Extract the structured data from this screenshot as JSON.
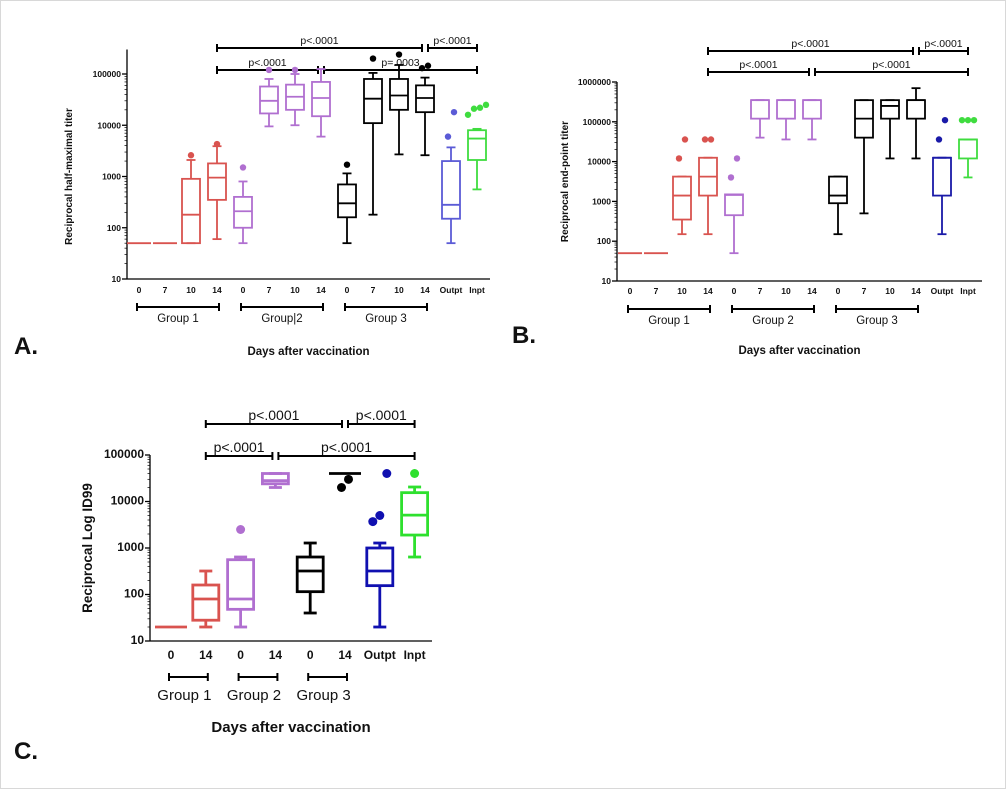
{
  "chart_data": [
    {
      "type": "box",
      "panel_label": "A.",
      "ylabel": "Reciprocal half-maximal titer",
      "xlabel": "Days after vaccination",
      "yscale": "log",
      "ylim": [
        10,
        300000
      ],
      "yticks": [
        "10",
        "100",
        "1000",
        "10000",
        "100000"
      ],
      "categories": [
        "0",
        "7",
        "10",
        "14",
        "0",
        "7",
        "10",
        "14",
        "0",
        "7",
        "10",
        "14",
        "Outpt",
        "Inpt"
      ],
      "groups": [
        {
          "label": "Group 1",
          "from": 0,
          "to": 3
        },
        {
          "label": "Group|2",
          "from": 4,
          "to": 7
        },
        {
          "label": "Group 3",
          "from": 8,
          "to": 11
        }
      ],
      "boxes": [
        {
          "color": "#d9534f",
          "min": 50,
          "q1": 50,
          "median": 50,
          "q3": 50,
          "max": 50,
          "outliers": []
        },
        {
          "color": "#d9534f",
          "min": 50,
          "q1": 50,
          "median": 50,
          "q3": 50,
          "max": 50,
          "outliers": []
        },
        {
          "color": "#d9534f",
          "min": 50,
          "q1": 50,
          "median": 180,
          "q3": 900,
          "max": 2100,
          "outliers": [
            2600
          ]
        },
        {
          "color": "#d9534f",
          "min": 60,
          "q1": 350,
          "median": 950,
          "q3": 1800,
          "max": 3900,
          "outliers": [
            4300
          ]
        },
        {
          "color": "#b06fd0",
          "min": 50,
          "q1": 100,
          "median": 210,
          "q3": 400,
          "max": 800,
          "outliers": [
            1500
          ]
        },
        {
          "color": "#b06fd0",
          "min": 9500,
          "q1": 17000,
          "median": 30000,
          "q3": 57000,
          "max": 80000,
          "outliers": [
            120000
          ]
        },
        {
          "color": "#b06fd0",
          "min": 10000,
          "q1": 20000,
          "median": 36000,
          "q3": 62000,
          "max": 100000,
          "outliers": [
            120000
          ]
        },
        {
          "color": "#b06fd0",
          "min": 6000,
          "q1": 15000,
          "median": 34000,
          "q3": 70000,
          "max": 125000,
          "outliers": []
        },
        {
          "color": "#000000",
          "min": 50,
          "q1": 160,
          "median": 300,
          "q3": 700,
          "max": 1150,
          "outliers": [
            1700
          ]
        },
        {
          "color": "#000000",
          "min": 180,
          "q1": 11000,
          "median": 33000,
          "q3": 80000,
          "max": 105000,
          "outliers": [
            200000
          ]
        },
        {
          "color": "#000000",
          "min": 2700,
          "q1": 20000,
          "median": 38000,
          "q3": 80000,
          "max": 150000,
          "outliers": [
            240000
          ]
        },
        {
          "color": "#000000",
          "min": 2600,
          "q1": 18000,
          "median": 34000,
          "q3": 60000,
          "max": 85000,
          "outliers": [
            130000,
            145000
          ]
        },
        {
          "color": "#5b5bd6",
          "min": 50,
          "q1": 150,
          "median": 280,
          "q3": 2000,
          "max": 3700,
          "outliers": [
            6000,
            18000
          ]
        },
        {
          "color": "#3fdc3f",
          "min": 560,
          "q1": 2100,
          "median": 5500,
          "q3": 8000,
          "max": 8500,
          "outliers": [
            16000,
            21000,
            22000,
            25000
          ]
        }
      ],
      "comparisons": [
        {
          "label": "p<.0001",
          "from": 3,
          "to": 11,
          "row": 0
        },
        {
          "label": "p<.0001",
          "from": 11,
          "to": 13,
          "row": 0
        },
        {
          "label": "p<.0001",
          "from": 3,
          "to": 7,
          "row": 1
        },
        {
          "label": "p=.0003",
          "from": 7,
          "to": 13,
          "row": 1
        }
      ]
    },
    {
      "type": "box",
      "panel_label": "B.",
      "ylabel": "Reciprocal end-point titer",
      "xlabel": "Days after vaccination",
      "yscale": "log",
      "ylim": [
        10,
        1000000
      ],
      "yticks": [
        "10",
        "100",
        "1000",
        "10000",
        "100000",
        "1000000"
      ],
      "categories": [
        "0",
        "7",
        "10",
        "14",
        "0",
        "7",
        "10",
        "14",
        "0",
        "7",
        "10",
        "14",
        "Outpt",
        "Inpt"
      ],
      "groups": [
        {
          "label": "Group 1",
          "from": 0,
          "to": 3
        },
        {
          "label": "Group 2",
          "from": 4,
          "to": 7
        },
        {
          "label": "Group 3",
          "from": 8,
          "to": 11
        }
      ],
      "boxes": [
        {
          "color": "#d9534f",
          "min": 50,
          "q1": 50,
          "median": 50,
          "q3": 50,
          "max": 50,
          "outliers": []
        },
        {
          "color": "#d9534f",
          "min": 50,
          "q1": 50,
          "median": 50,
          "q3": 50,
          "max": 50,
          "outliers": []
        },
        {
          "color": "#d9534f",
          "min": 150,
          "q1": 350,
          "median": 1400,
          "q3": 4200,
          "max": 4200,
          "outliers": [
            12000,
            36000
          ]
        },
        {
          "color": "#d9534f",
          "min": 150,
          "q1": 1400,
          "median": 4200,
          "q3": 12500,
          "max": 12500,
          "outliers": [
            36000,
            36000
          ]
        },
        {
          "color": "#b06fd0",
          "min": 50,
          "q1": 450,
          "median": 1450,
          "q3": 1500,
          "max": 1500,
          "outliers": [
            4000,
            12000
          ]
        },
        {
          "color": "#b06fd0",
          "min": 40000,
          "q1": 120000,
          "median": 350000,
          "q3": 350000,
          "max": 350000,
          "outliers": []
        },
        {
          "color": "#b06fd0",
          "min": 36000,
          "q1": 120000,
          "median": 350000,
          "q3": 350000,
          "max": 350000,
          "outliers": []
        },
        {
          "color": "#b06fd0",
          "min": 36000,
          "q1": 120000,
          "median": 350000,
          "q3": 350000,
          "max": 350000,
          "outliers": []
        },
        {
          "color": "#000000",
          "min": 150,
          "q1": 900,
          "median": 1400,
          "q3": 4200,
          "max": 4200,
          "outliers": []
        },
        {
          "color": "#000000",
          "min": 500,
          "q1": 40000,
          "median": 120000,
          "q3": 350000,
          "max": 350000,
          "outliers": []
        },
        {
          "color": "#000000",
          "min": 12000,
          "q1": 120000,
          "median": 250000,
          "q3": 350000,
          "max": 350000,
          "outliers": []
        },
        {
          "color": "#000000",
          "min": 12000,
          "q1": 120000,
          "median": 350000,
          "q3": 350000,
          "max": 700000,
          "outliers": []
        },
        {
          "color": "#1a1aa8",
          "min": 150,
          "q1": 1400,
          "median": 12500,
          "q3": 12500,
          "max": 12500,
          "outliers": [
            36000,
            110000
          ]
        },
        {
          "color": "#3fdc3f",
          "min": 4000,
          "q1": 12000,
          "median": 36000,
          "q3": 36000,
          "max": 36000,
          "outliers": [
            110000,
            110000,
            110000
          ]
        }
      ],
      "comparisons": [
        {
          "label": "p<.0001",
          "from": 3,
          "to": 11,
          "row": 0
        },
        {
          "label": "p<.0001",
          "from": 11,
          "to": 13,
          "row": 0
        },
        {
          "label": "p<.0001",
          "from": 3,
          "to": 7,
          "row": 1
        },
        {
          "label": "p<.0001",
          "from": 7,
          "to": 13,
          "row": 1
        }
      ]
    },
    {
      "type": "box",
      "panel_label": "C.",
      "ylabel": "Reciprocal Log ID99",
      "xlabel": "Days after vaccination",
      "yscale": "log",
      "ylim": [
        10,
        100000
      ],
      "yticks": [
        "10",
        "100",
        "1000",
        "10000",
        "100000"
      ],
      "categories": [
        "0",
        "14",
        "0",
        "14",
        "0",
        "14",
        "Outpt",
        "Inpt"
      ],
      "groups": [
        {
          "label": "Group 1",
          "from": 0,
          "to": 1
        },
        {
          "label": "Group 2",
          "from": 2,
          "to": 3
        },
        {
          "label": "Group 3",
          "from": 4,
          "to": 5
        }
      ],
      "boxes": [
        {
          "color": "#d9534f",
          "min": 20,
          "q1": 20,
          "median": 20,
          "q3": 20,
          "max": 20,
          "outliers": []
        },
        {
          "color": "#d9534f",
          "min": 20,
          "q1": 28,
          "median": 80,
          "q3": 160,
          "max": 320,
          "outliers": []
        },
        {
          "color": "#b06fd0",
          "min": 20,
          "q1": 48,
          "median": 80,
          "q3": 560,
          "max": 640,
          "outliers": [
            2500
          ]
        },
        {
          "color": "#b06fd0",
          "min": 20000,
          "q1": 24000,
          "median": 28000,
          "q3": 40000,
          "max": 40000,
          "outliers": []
        },
        {
          "color": "#000000",
          "min": 40,
          "q1": 115,
          "median": 320,
          "q3": 640,
          "max": 1280,
          "outliers": []
        },
        {
          "color": "#000000",
          "min": 40000,
          "q1": 40000,
          "median": 40000,
          "q3": 40000,
          "max": 40000,
          "outliers": [
            20000,
            30000
          ]
        },
        {
          "color": "#1010b0",
          "min": 20,
          "q1": 155,
          "median": 320,
          "q3": 1000,
          "max": 1280,
          "outliers": [
            3700,
            5000,
            40000
          ]
        },
        {
          "color": "#2ee02e",
          "min": 640,
          "q1": 1900,
          "median": 5100,
          "q3": 15500,
          "max": 20500,
          "outliers": [
            40000
          ]
        }
      ],
      "comparisons": [
        {
          "label": "p<.0001",
          "from": 1,
          "to": 5,
          "row": 0
        },
        {
          "label": "p<.0001",
          "from": 5,
          "to": 7,
          "row": 0
        },
        {
          "label": "p<.0001",
          "from": 1,
          "to": 3,
          "row": 1
        },
        {
          "label": "p<.0001",
          "from": 3,
          "to": 7,
          "row": 1
        }
      ]
    }
  ]
}
